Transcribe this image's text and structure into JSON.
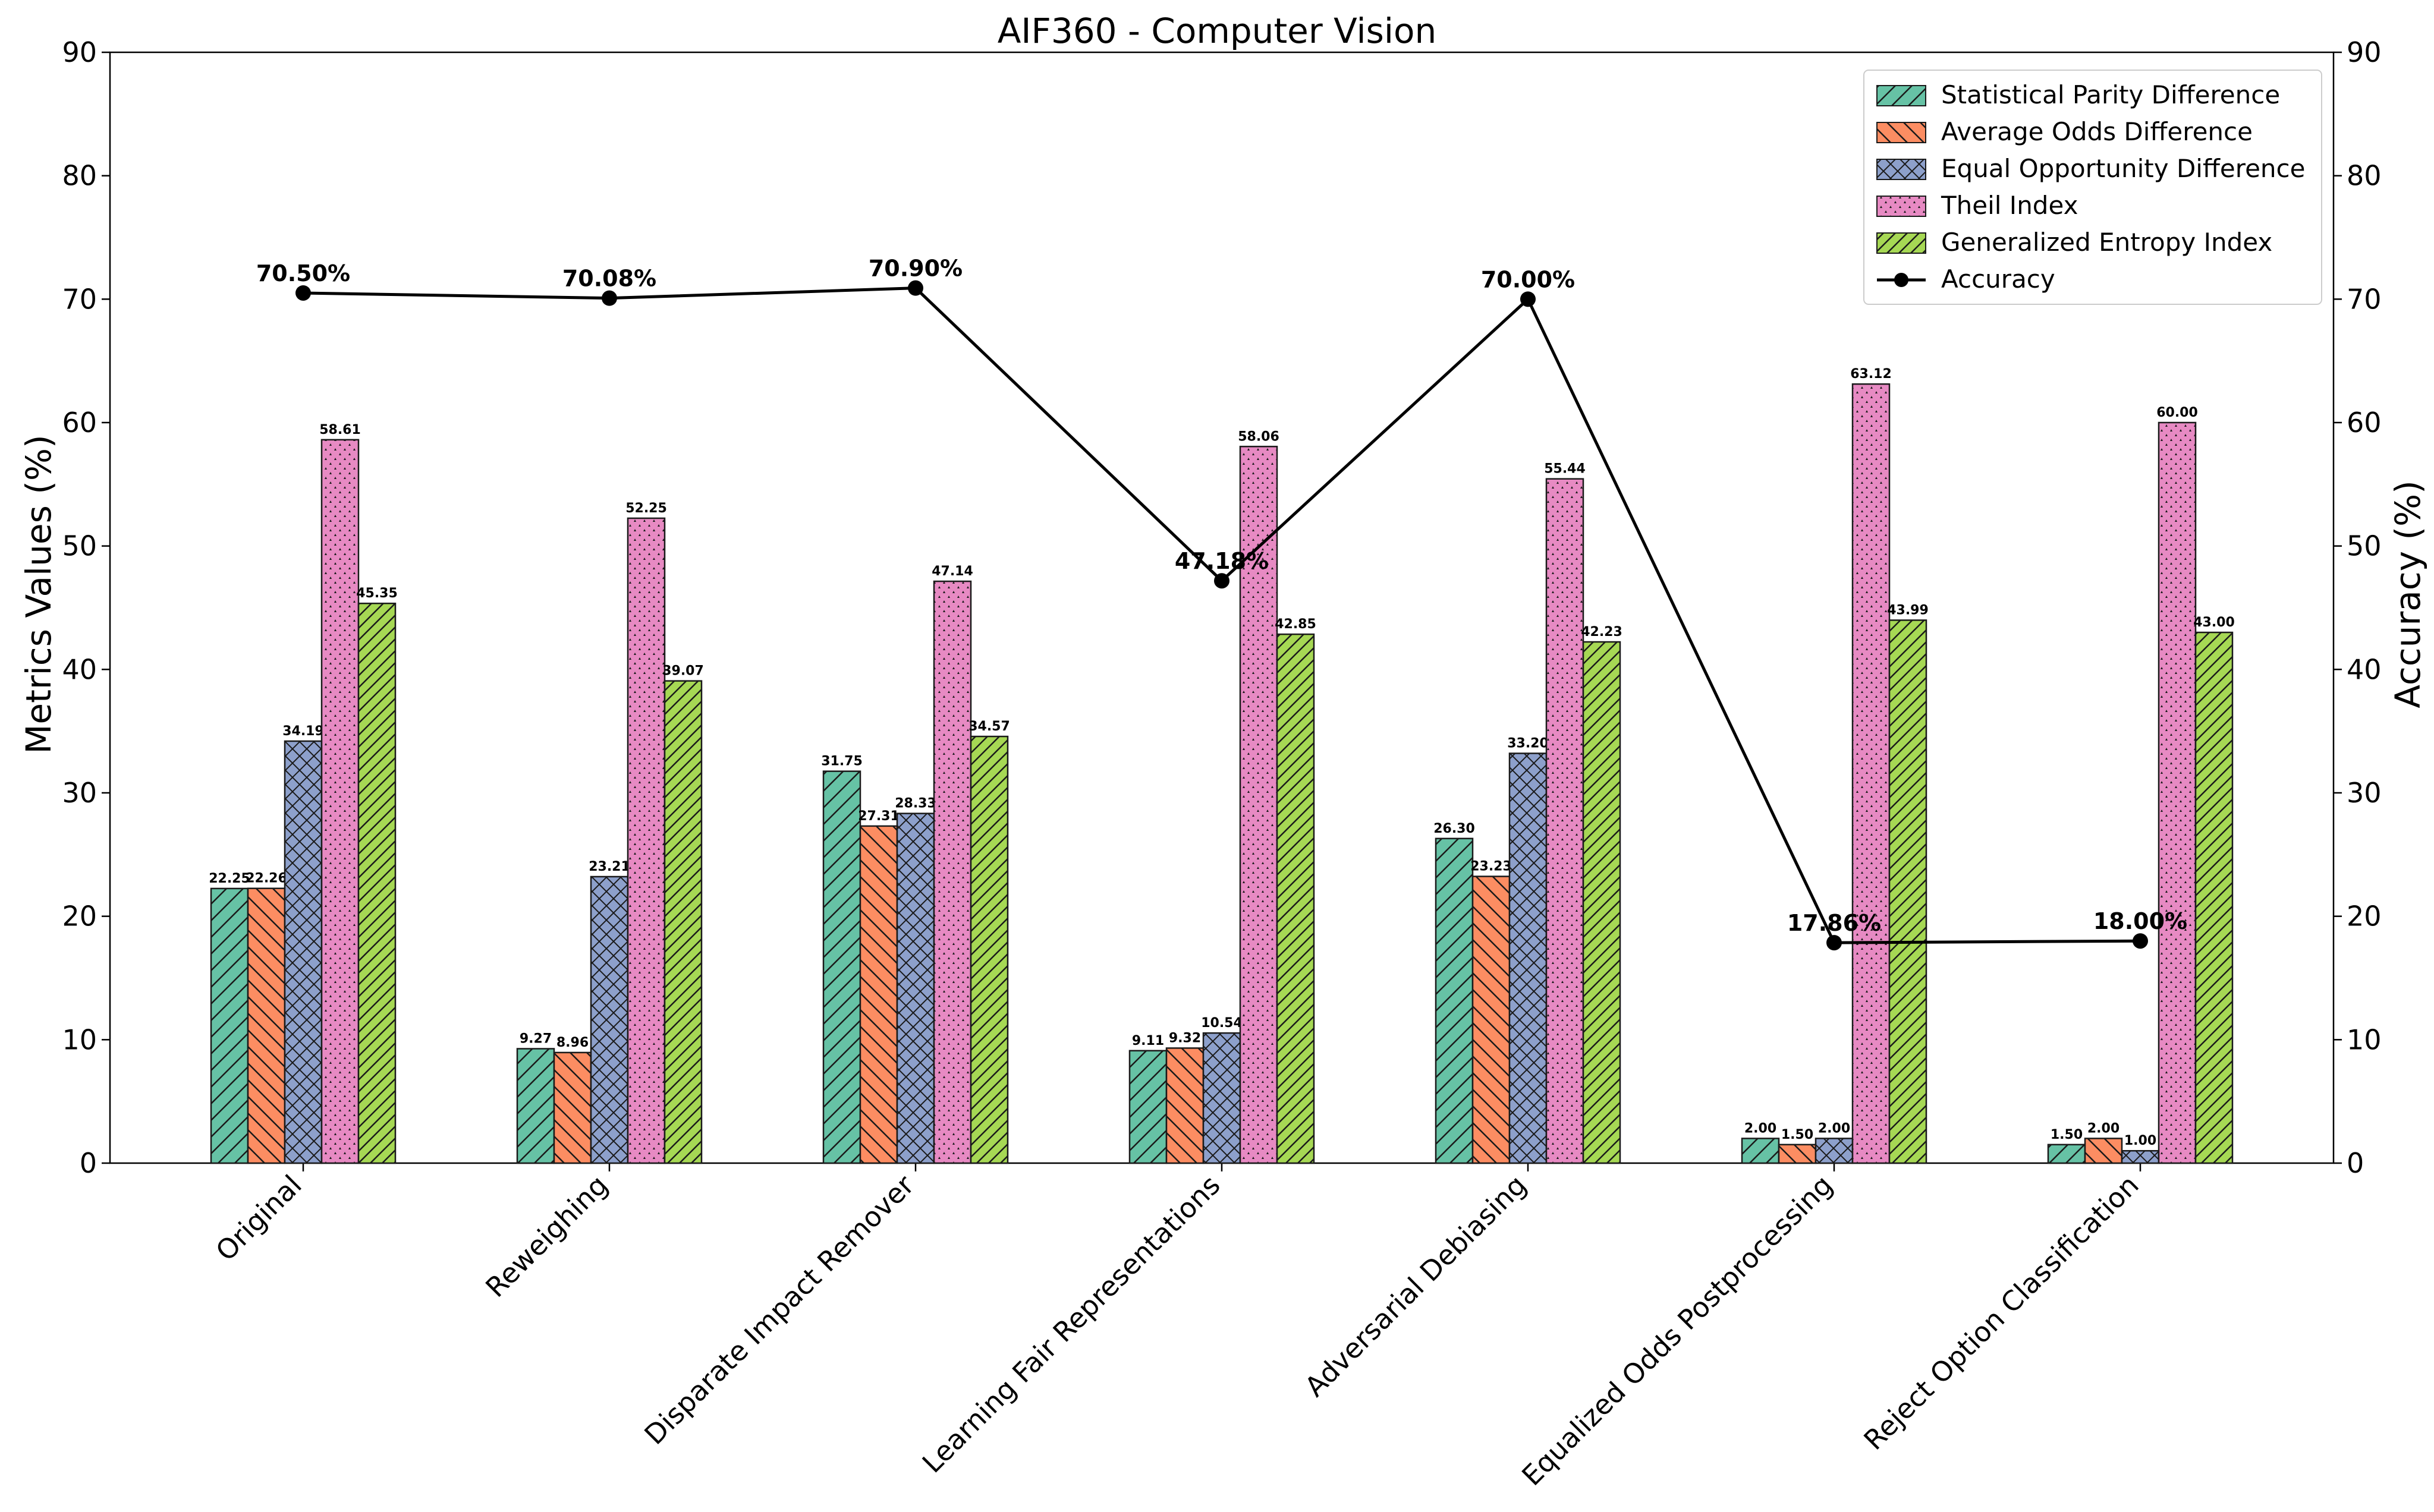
{
  "chart_data": {
    "type": "bar",
    "title": "AIF360 - Computer Vision",
    "ylabel": "Metrics Values (%)",
    "y2label": "Accuracy (%)",
    "ylim": [
      0,
      90
    ],
    "y2lim": [
      0,
      90
    ],
    "yticks": [
      0,
      10,
      20,
      30,
      40,
      50,
      60,
      70,
      80,
      90
    ],
    "legend_position": "top-right",
    "categories": [
      "Original",
      "Reweighing",
      "Disparate Impact Remover",
      "Learning Fair Representations",
      "Adversarial Debiasing",
      "Equalized Odds Postprocessing",
      "Reject Option Classification"
    ],
    "series": [
      {
        "name": "Statistical Parity Difference",
        "color": "#66c2a5",
        "hatch": "diag-right",
        "values": [
          22.25,
          9.27,
          31.75,
          9.11,
          26.3,
          2.0,
          1.5
        ],
        "labels": [
          "22.25",
          "9.27",
          "31.75",
          "9.11",
          "26.30",
          "2.00",
          "1.50"
        ]
      },
      {
        "name": "Average Odds Difference",
        "color": "#fc8d62",
        "hatch": "diag-left",
        "values": [
          22.26,
          8.96,
          27.31,
          9.32,
          23.23,
          1.5,
          2.0
        ],
        "labels": [
          "22.26",
          "8.96",
          "27.31",
          "9.32",
          "23.23",
          "1.50",
          "2.00"
        ]
      },
      {
        "name": "Equal Opportunity Difference",
        "color": "#8da0cb",
        "hatch": "cross",
        "values": [
          34.19,
          23.21,
          28.33,
          10.54,
          33.2,
          2.0,
          1.0
        ],
        "labels": [
          "34.19",
          "23.21",
          "28.33",
          "10.54",
          "33.20",
          "2.00",
          "1.00"
        ]
      },
      {
        "name": "Theil Index",
        "color": "#e78ac3",
        "hatch": "dots",
        "values": [
          58.61,
          52.25,
          47.14,
          58.06,
          55.44,
          63.12,
          60.0
        ],
        "labels": [
          "58.61",
          "52.25",
          "47.14",
          "58.06",
          "55.44",
          "63.12",
          "60.00"
        ]
      },
      {
        "name": "Generalized Entropy Index",
        "color": "#a6d854",
        "hatch": "diag-right-dense",
        "values": [
          45.35,
          39.07,
          34.57,
          42.85,
          42.23,
          43.99,
          43.0
        ],
        "labels": [
          "45.35",
          "39.07",
          "34.57",
          "42.85",
          "42.23",
          "43.99",
          "43.00"
        ]
      }
    ],
    "line": {
      "name": "Accuracy",
      "color": "#000000",
      "values": [
        70.5,
        70.08,
        70.9,
        47.18,
        70.0,
        17.86,
        18.0
      ],
      "labels": [
        "70.50%",
        "70.08%",
        "70.90%",
        "47.18%",
        "70.00%",
        "17.86%",
        "18.00%"
      ]
    }
  }
}
